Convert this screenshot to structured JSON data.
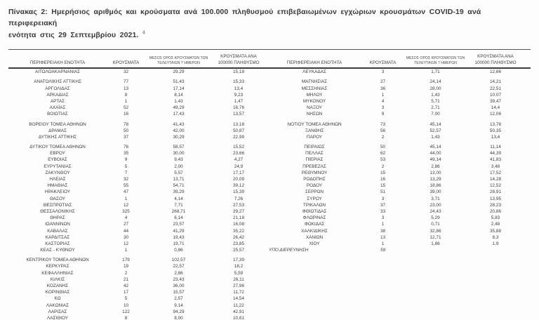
{
  "page": {
    "title_line1": "Πίνακας 2: Ημερήσιος αριθμός και κρούσματα ανά 100.000 πληθυσμού επιβεβαιωμένων εγχώριων κρουσμάτων COVID-19 ανά περιφερειακή",
    "title_line2": "ενότητα στις 29 Σεπτεμβρίου 2021.",
    "title_footnote_ref": "4"
  },
  "colors": {
    "text": "#3d3d3d",
    "rule": "#3c3c3c",
    "footnote": "#7a8ca0"
  },
  "table": {
    "headers": {
      "region": "ΠΕΡΙΦΕΡΕΙΑΚΗ ΕΝΟΤΗΤΑ",
      "cases": "ΚΡΟΥΣΜΑΤΑ",
      "avg7": "ΜΕΣΟΣ ΟΡΟΣ ΚΡΟΥΣΜΑΤΩΝ ΤΩΝ ΤΕΛΕΥΤΑΙΩΝ 7 ΗΜΕΡΩΝ",
      "per100k": "ΚΡΟΥΣΜΑΤΑ ΑΝΑ 100000 ΠΛΗΘΥΣΜΟ"
    },
    "rows": [
      {
        "l": [
          "ΑΙΤΩΛΟΑΚΑΡΝΑΝΙΑΣ",
          "32",
          "29,29",
          "15,18"
        ],
        "r": [
          "ΛΕΥΚΑΔΑΣ",
          "3",
          "1,71",
          "12,66"
        ]
      },
      {
        "gap": true
      },
      {
        "l": [
          "ΑΝΑΤΟΛΙΚΗΣ ΑΤΤΙΚΗΣ",
          "77",
          "51,43",
          "15,33"
        ],
        "r": [
          "ΜΑΓΝΗΣΙΑΣ",
          "27",
          "24,14",
          "14,21"
        ]
      },
      {
        "l": [
          "ΑΡΓΟΛΙΔΑΣ",
          "13",
          "17,14",
          "13,4"
        ],
        "r": [
          "ΜΕΣΣΗΝΙΑΣ",
          "36",
          "28,00",
          "22,51"
        ]
      },
      {
        "l": [
          "ΑΡΚΑΔΙΑΣ",
          "8",
          "8,14",
          "9,23"
        ],
        "r": [
          "ΜΗΛΟΥ",
          "1",
          "1,43",
          "10,07"
        ]
      },
      {
        "l": [
          "ΑΡΤΑΣ",
          "1",
          "1,43",
          "1,47"
        ],
        "r": [
          "ΜΥΚΟΝΟΥ",
          "4",
          "5,71",
          "39,47"
        ]
      },
      {
        "l": [
          "ΑΧΑΪΑΣ",
          "52",
          "49,29",
          "16,76"
        ],
        "r": [
          "ΝΑΞΟΥ",
          "3",
          "2,71",
          "14,4"
        ]
      },
      {
        "l": [
          "ΒΟΙΩΤΙΑΣ",
          "16",
          "17,43",
          "13,57"
        ],
        "r": [
          "ΝΗΣΩΝ",
          "9",
          "7,00",
          "12,06"
        ]
      },
      {
        "gap": true
      },
      {
        "l": [
          "ΒΟΡΕΙΟΥ ΤΟΜΕΑ ΑΘΗΝΩΝ",
          "78",
          "41,43",
          "13,18"
        ],
        "r": [
          "ΝΟΤΙΟΥ ΤΟΜΕΑ ΑΘΗΝΩΝ",
          "73",
          "45,14",
          "13,78"
        ]
      },
      {
        "l": [
          "ΔΡΑΜΑΣ",
          "50",
          "42,00",
          "50,87"
        ],
        "r": [
          "ΞΑΝΘΗΣ",
          "56",
          "52,57",
          "50,35"
        ]
      },
      {
        "l": [
          "ΔΥΤΙΚΗΣ ΑΤΤΙΚΗΣ",
          "37",
          "30,29",
          "22,99"
        ],
        "r": [
          "ΠΑΡΟΥ",
          "2",
          "1,43",
          "13,4"
        ]
      },
      {
        "gap": true
      },
      {
        "l": [
          "ΔΥΤΙΚΟΥ ΤΟΜΕΑ ΑΘΗΝΩΝ",
          "76",
          "58,57",
          "15,52"
        ],
        "r": [
          "ΠΕΙΡΑΙΩΣ",
          "50",
          "45,14",
          "11,14"
        ]
      },
      {
        "l": [
          "ΕΒΡΟΥ",
          "35",
          "30,00",
          "23,66"
        ],
        "r": [
          "ΠΕΛΛΑΣ",
          "62",
          "44,00",
          "44,39"
        ]
      },
      {
        "l": [
          "ΕΥΒΟΙΑΣ",
          "9",
          "9,43",
          "4,27"
        ],
        "r": [
          "ΠΙΕΡΙΑΣ",
          "53",
          "49,14",
          "41,83"
        ]
      },
      {
        "l": [
          "ΕΥΡΥΤΑΝΙΑΣ",
          "5",
          "2,00",
          "24,9"
        ],
        "r": [
          "ΠΡΕΒΕΖΑΣ",
          "2",
          "2,86",
          "3,48"
        ]
      },
      {
        "l": [
          "ΖΑΚΥΝΘΟΥ",
          "7",
          "5,57",
          "17,17"
        ],
        "r": [
          "ΡΕΘΥΜΝΟΥ",
          "15",
          "13,00",
          "17,52"
        ]
      },
      {
        "l": [
          "ΗΛΕΙΑΣ",
          "32",
          "13,71",
          "20,09"
        ],
        "r": [
          "ΡΟΔΟΠΗΣ",
          "16",
          "13,29",
          "14,28"
        ]
      },
      {
        "l": [
          "ΗΜΑΘΙΑΣ",
          "55",
          "54,71",
          "39,12"
        ],
        "r": [
          "ΡΟΔΟΥ",
          "15",
          "18,86",
          "12,52"
        ]
      },
      {
        "l": [
          "ΗΡΑΚΛΕΙΟΥ",
          "47",
          "39,29",
          "15,39"
        ],
        "r": [
          "ΣΕΡΡΩΝ",
          "51",
          "39,00",
          "28,91"
        ]
      },
      {
        "l": [
          "ΘΑΣΟΥ",
          "1",
          "4,14",
          "7,26"
        ],
        "r": [
          "ΣΥΡΟΥ",
          "3",
          "3,71",
          "13,95"
        ]
      },
      {
        "l": [
          "ΘΕΣΠΡΩΤΙΑΣ",
          "12",
          "7,71",
          "27,53"
        ],
        "r": [
          "ΤΡΙΚΑΛΩΝ",
          "37",
          "23,00",
          "28,23"
        ]
      },
      {
        "l": [
          "ΘΕΣΣΑΛΟΝΙΚΗΣ",
          "325",
          "268,71",
          "29,27"
        ],
        "r": [
          "ΦΘΙΩΤΙΔΑΣ",
          "33",
          "24,43",
          "20,86"
        ]
      },
      {
        "l": [
          "ΘΗΡΑΣ",
          "4",
          "6,14",
          "21,18"
        ],
        "r": [
          "ΦΛΩΡΙΝΑΣ",
          "3",
          "5,29",
          "5,83"
        ]
      },
      {
        "l": [
          "ΙΩΑΝΝΙΝΩΝ",
          "27",
          "23,57",
          "16,08"
        ],
        "r": [
          "ΦΩΚΙΔΑΣ",
          "1",
          "0,71",
          "2,48"
        ]
      },
      {
        "l": [
          "ΚΑΒΑΛΑΣ",
          "44",
          "41,29",
          "35,22"
        ],
        "r": [
          "ΧΑΛΚΙΔΙΚΗΣ",
          "38",
          "32,86",
          "35,88"
        ]
      },
      {
        "l": [
          "ΚΑΡΔΙΤΣΑΣ",
          "30",
          "19,43",
          "26,42"
        ],
        "r": [
          "ΧΑΝΙΩΝ",
          "13",
          "12,71",
          "8,3"
        ]
      },
      {
        "l": [
          "ΚΑΣΤΟΡΙΑΣ",
          "12",
          "19,71",
          "23,85"
        ],
        "r": [
          "ΧΙΟΥ",
          "1",
          "1,86",
          "1,9"
        ]
      },
      {
        "l": [
          "ΚΕΑΣ - ΚΥΘΝΟΥ",
          "1",
          "0,86",
          "25,57"
        ],
        "r": [
          "ΥΠΟ ΔΙΕΡΕΥΝΗΣΗ",
          "59",
          "",
          ""
        ],
        "r_style": "investigation"
      },
      {
        "gap": true
      },
      {
        "l": [
          "ΚΕΝΤΡΙΚΟΥ ΤΟΜΕΑ ΑΘΗΝΩΝ",
          "179",
          "102,57",
          "17,39"
        ],
        "r": null
      },
      {
        "l": [
          "ΚΕΡΚΥΡΑΣ",
          "19",
          "22,57",
          "18,2"
        ],
        "r": null
      },
      {
        "l": [
          "ΚΕΦΑΛΛΗΝΙΑΣ",
          "2",
          "2,86",
          "5,59"
        ],
        "r": null
      },
      {
        "l": [
          "ΚΙΛΚΙΣ",
          "21",
          "23,43",
          "26,11"
        ],
        "r": null
      },
      {
        "l": [
          "ΚΟΖΑΝΗΣ",
          "42",
          "36,00",
          "27,96"
        ],
        "r": null
      },
      {
        "l": [
          "ΚΟΡΙΝΘΙΑΣ",
          "17",
          "15,57",
          "11,72"
        ],
        "r": null
      },
      {
        "l": [
          "ΚΩ",
          "5",
          "2,57",
          "14,54"
        ],
        "r": null
      },
      {
        "l": [
          "ΛΑΚΩΝΙΑΣ",
          "10",
          "9,14",
          "11,22"
        ],
        "r": null
      },
      {
        "l": [
          "ΛΑΡΙΣΑΣ",
          "122",
          "94,29",
          "42,91"
        ],
        "r": null
      },
      {
        "l": [
          "ΛΑΣΙΘΙΟΥ",
          "8",
          "8,00",
          "10,61"
        ],
        "r": null
      },
      {
        "l": [
          "ΛΕΣΒΟΥ",
          "5",
          "3,86",
          "5,78"
        ],
        "r": null
      }
    ]
  }
}
